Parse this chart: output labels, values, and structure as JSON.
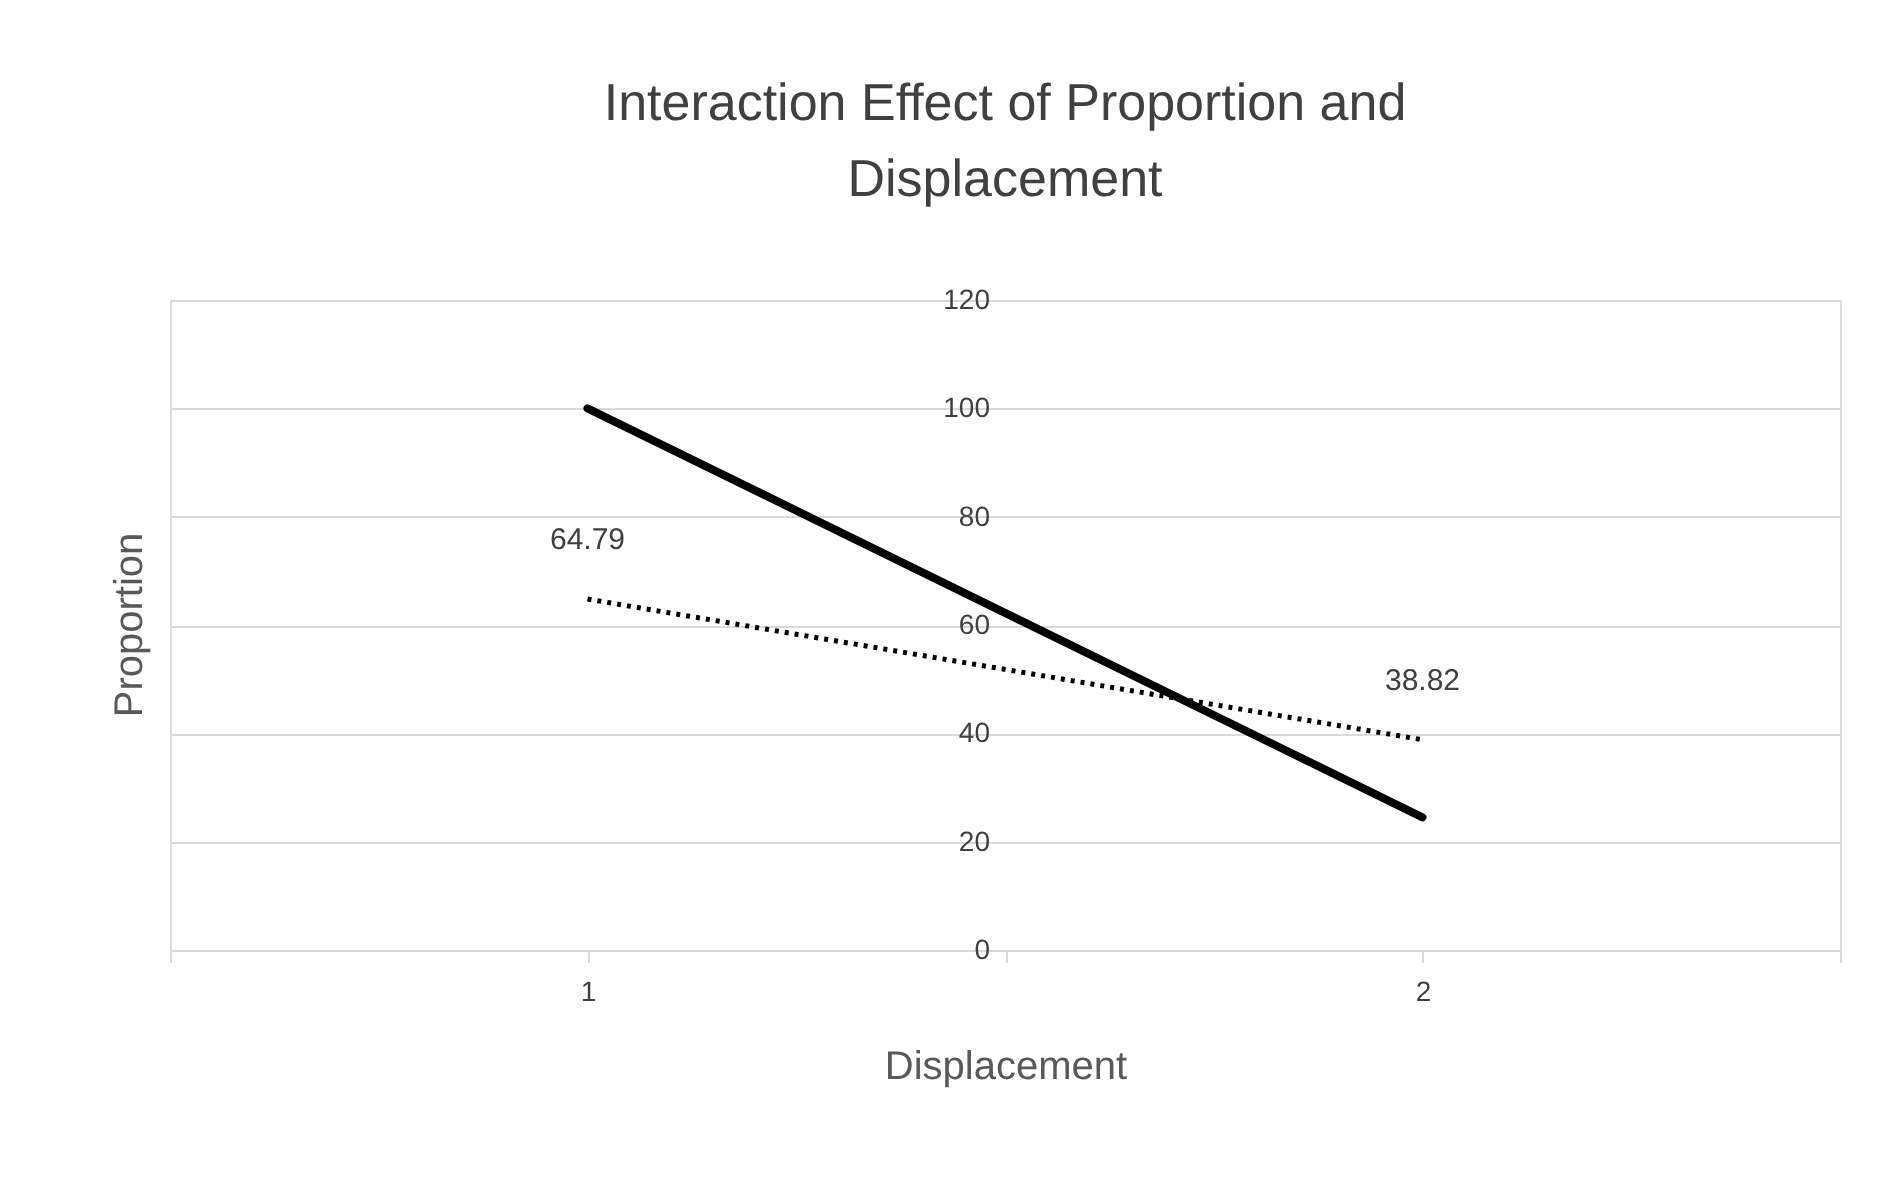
{
  "chart_data": {
    "type": "line",
    "title": "Interaction Effect of Proportion and\nDisplacement",
    "xlabel": "Displacement",
    "ylabel": "Proportion",
    "x": [
      1,
      2
    ],
    "series": [
      {
        "color": "#000000",
        "values": [
          100,
          24.5
        ],
        "line_style": "solid"
      },
      {
        "color": "#000000",
        "values": [
          64.79,
          38.82
        ],
        "line_style": "dotted",
        "value_labels": [
          "64.79",
          "38.82"
        ]
      }
    ],
    "xlim": [
      0.5,
      2.5
    ],
    "xticks": [
      {
        "value": 0.5,
        "label": null
      },
      1,
      {
        "value": 1.5,
        "label": null
      },
      2,
      {
        "value": 2.5,
        "label": null
      }
    ],
    "ylim": [
      0,
      120
    ],
    "yticks": [
      0,
      20,
      40,
      60,
      80,
      100,
      120
    ],
    "grid": "y",
    "marker": "none"
  }
}
